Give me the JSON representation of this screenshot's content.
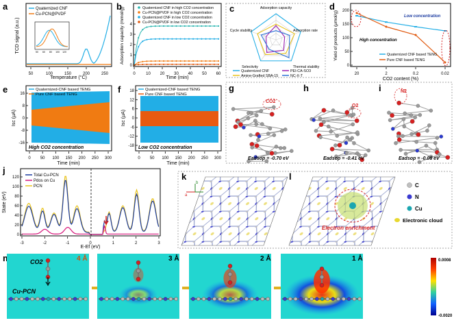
{
  "colors": {
    "cyan": "#22aee6",
    "orange": "#f07b12",
    "teal": "#2bb6b0",
    "purple": "#9b1fb0",
    "blue": "#2a6fd6",
    "yellow": "#e8c21a",
    "red": "#d62020",
    "green": "#3a9a3a",
    "nitrogen": "#3a3ad0",
    "copper": "#1aa6b0",
    "carbon": "#bfbfbf"
  },
  "panels": {
    "a": {
      "letter": "a",
      "legend": [
        "Quaternized CNF",
        "Cu-PCN@PVDF"
      ],
      "xlabel": "Temperature (°C)",
      "ylabel": "TCD signal (a.u.)",
      "xticks": [
        "50",
        "100",
        "150",
        "200",
        "250"
      ],
      "inset_xticks": [
        "50",
        "60",
        "80",
        "100",
        "120"
      ]
    },
    "b": {
      "letter": "b",
      "legend": [
        "Quaternized CNF in high CO2 concentration",
        "Cu-PCN@PVDF in high CO2 concentration",
        "Quaternized CNF in low CO2 concentration",
        "Cu-PCN@PVDF in low CO2 concentration"
      ],
      "xlabel": "Time (min)",
      "ylabel": "Adsorption capacity (mmol/g)",
      "xticks": [
        "0",
        "10",
        "20",
        "30",
        "40",
        "50",
        "60"
      ],
      "yticks": [
        "0",
        "1",
        "2",
        "3",
        "4"
      ]
    },
    "c": {
      "letter": "c",
      "axes": [
        "Adsorption capacity",
        "Adsorption rate",
        "Thermal stability",
        "Selectivity",
        "Cycle stability"
      ],
      "legend": [
        "Quaternized CNF",
        "PEI-CA-SO3",
        "Amine-Grafted SBA-15",
        "NC-X-T"
      ]
    },
    "d": {
      "letter": "d",
      "xlabel": "CO2 content (%)",
      "ylabel": "Yield of products (μmol/g)",
      "xticks": [
        "20",
        "2",
        "0.2",
        "0.02"
      ],
      "yticks": [
        "0",
        "50",
        "100",
        "150",
        "200"
      ],
      "annot_low": "Low concentration",
      "annot_high": "High concentration",
      "legend": [
        "Quaternized CNF based TENG",
        "Pure CNF based TENG"
      ]
    },
    "e": {
      "letter": "e",
      "legend": [
        "Quaternized-CNF based TENG",
        "Pure CNF based TENG"
      ],
      "annot": "High CO2 concentration",
      "xlabel": "Time (min)",
      "ylabel": "Isc (μA)",
      "xticks": [
        "0",
        "50",
        "100",
        "150",
        "200",
        "250",
        "300"
      ],
      "yticks": [
        "16",
        "8",
        "0",
        "-8",
        "-16"
      ]
    },
    "f": {
      "letter": "f",
      "legend": [
        "Quaternized-CNF based TENG",
        "Pure CNF based TENG"
      ],
      "annot": "Low CO2 concentration",
      "xlabel": "Time (min)",
      "ylabel": "Isc (μA)",
      "xticks": [
        "0",
        "50",
        "100",
        "150",
        "200",
        "250",
        "300"
      ],
      "yticks": [
        "18",
        "12",
        "6",
        "0",
        "-6",
        "-12",
        "-18"
      ]
    },
    "g": {
      "letter": "g",
      "mol": "CO2",
      "energy": "Eadsop = -0.70 eV"
    },
    "h": {
      "letter": "h",
      "mol": "O2",
      "energy": "Eadsop = -0.41 eV"
    },
    "i": {
      "letter": "i",
      "mol": "N2",
      "energy": "Eadsop = -0.08 eV"
    },
    "j": {
      "letter": "j",
      "legend": [
        "Total Cu-PCN",
        "Pdos on Cu",
        "PCN"
      ],
      "xlabel": "E-Ef (eV)",
      "ylabel": "State (eV)",
      "xticks": [
        "-3",
        "-2",
        "-1",
        "0",
        "1",
        "2",
        "3"
      ],
      "yticks": [
        "0",
        "20",
        "40",
        "60",
        "80",
        "100",
        "120"
      ]
    },
    "k": {
      "letter": "k",
      "axis_a": "a",
      "axis_b": "b"
    },
    "l": {
      "letter": "l",
      "annot": "Electron enrichment",
      "legend": [
        "C",
        "N",
        "Cu",
        "Electronic cloud"
      ]
    },
    "m": {
      "letter": "m",
      "co2_label": "CO2",
      "surface_label": "Cu-PCN",
      "distances": [
        "4 Å",
        "3 Å",
        "2 Å",
        "1 Å"
      ],
      "colorbar": [
        "0.0008",
        "-0.0020"
      ]
    }
  }
}
